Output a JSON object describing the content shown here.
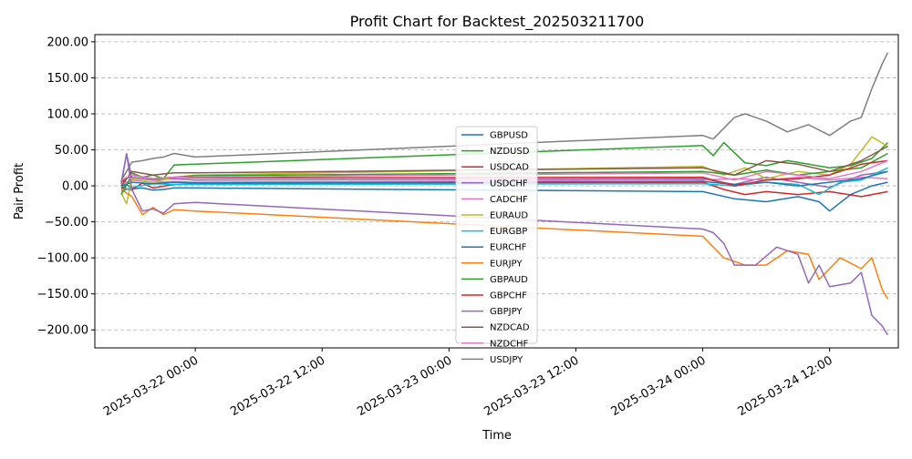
{
  "chart_data": {
    "type": "line",
    "title": "Profit Chart for Backtest_202503211700",
    "xlabel": "Time",
    "ylabel": "Pair Profit",
    "ylim": [
      -225,
      210
    ],
    "xlim": [
      "2025-03-21 14:30",
      "2025-03-24 18:30"
    ],
    "grid": "horizontal dashed",
    "legend_position": "center",
    "yticks": [
      200,
      150,
      100,
      50,
      0,
      -50,
      -100,
      -150,
      -200
    ],
    "ytick_labels": [
      "200.00",
      "150.00",
      "100.00",
      "50.00",
      "0.00",
      "−50.00",
      "−100.00",
      "−150.00",
      "−200.00"
    ],
    "xticks": [
      "2025-03-22 00:00",
      "2025-03-22 12:00",
      "2025-03-23 00:00",
      "2025-03-23 12:00",
      "2025-03-24 00:00",
      "2025-03-24 12:00"
    ],
    "series": [
      {
        "name": "GBPUSD",
        "color": "#1f77b4",
        "points": [
          [
            "2025-03-21 17:00",
            -5
          ],
          [
            "2025-03-21 17:30",
            2
          ],
          [
            "2025-03-21 18:00",
            -4
          ],
          [
            "2025-03-21 19:00",
            -3
          ],
          [
            "2025-03-21 20:00",
            -6
          ],
          [
            "2025-03-21 21:00",
            -5
          ],
          [
            "2025-03-21 22:00",
            -3
          ],
          [
            "2025-03-22 00:00",
            -3
          ],
          [
            "2025-03-24 00:00",
            -8
          ],
          [
            "2025-03-24 03:00",
            -18
          ],
          [
            "2025-03-24 06:00",
            -22
          ],
          [
            "2025-03-24 09:00",
            -15
          ],
          [
            "2025-03-24 11:00",
            -22
          ],
          [
            "2025-03-24 12:00",
            -35
          ],
          [
            "2025-03-24 14:00",
            -12
          ],
          [
            "2025-03-24 16:00",
            0
          ],
          [
            "2025-03-24 17:30",
            5
          ]
        ]
      },
      {
        "name": "NZDUSD",
        "color": "#2ca02c",
        "points": [
          [
            "2025-03-21 17:00",
            -3
          ],
          [
            "2025-03-21 17:30",
            10
          ],
          [
            "2025-03-21 18:00",
            18
          ],
          [
            "2025-03-21 19:00",
            12
          ],
          [
            "2025-03-21 20:00",
            15
          ],
          [
            "2025-03-21 21:00",
            10
          ],
          [
            "2025-03-21 22:00",
            29
          ],
          [
            "2025-03-22 00:00",
            30
          ],
          [
            "2025-03-24 00:00",
            56
          ],
          [
            "2025-03-24 01:00",
            42
          ],
          [
            "2025-03-24 02:00",
            60
          ],
          [
            "2025-03-24 04:00",
            32
          ],
          [
            "2025-03-24 06:00",
            28
          ],
          [
            "2025-03-24 08:00",
            35
          ],
          [
            "2025-03-24 10:00",
            30
          ],
          [
            "2025-03-24 12:00",
            25
          ],
          [
            "2025-03-24 14:00",
            28
          ],
          [
            "2025-03-24 16:00",
            38
          ],
          [
            "2025-03-24 17:30",
            60
          ]
        ]
      },
      {
        "name": "USDCAD",
        "color": "#d62728",
        "points": [
          [
            "2025-03-21 17:00",
            -2
          ],
          [
            "2025-03-21 18:00",
            -6
          ],
          [
            "2025-03-21 19:00",
            4
          ],
          [
            "2025-03-21 20:00",
            -3
          ],
          [
            "2025-03-21 22:00",
            2
          ],
          [
            "2025-03-22 00:00",
            3
          ],
          [
            "2025-03-24 00:00",
            5
          ],
          [
            "2025-03-24 02:00",
            -5
          ],
          [
            "2025-03-24 04:00",
            -12
          ],
          [
            "2025-03-24 06:00",
            -8
          ],
          [
            "2025-03-24 09:00",
            -12
          ],
          [
            "2025-03-24 12:00",
            -8
          ],
          [
            "2025-03-24 15:00",
            -15
          ],
          [
            "2025-03-24 17:30",
            -8
          ]
        ]
      },
      {
        "name": "USDCHF",
        "color": "#9467bd",
        "points": [
          [
            "2025-03-21 17:00",
            3
          ],
          [
            "2025-03-21 17:30",
            44
          ],
          [
            "2025-03-21 18:00",
            12
          ],
          [
            "2025-03-21 20:00",
            8
          ],
          [
            "2025-03-21 22:00",
            10
          ],
          [
            "2025-03-22 00:00",
            8
          ],
          [
            "2025-03-24 00:00",
            10
          ],
          [
            "2025-03-24 03:00",
            2
          ],
          [
            "2025-03-24 06:00",
            12
          ],
          [
            "2025-03-24 09:00",
            5
          ],
          [
            "2025-03-24 12:00",
            -2
          ],
          [
            "2025-03-24 15:00",
            15
          ],
          [
            "2025-03-24 17:30",
            20
          ]
        ]
      },
      {
        "name": "CADCHF",
        "color": "#e377c2",
        "points": [
          [
            "2025-03-21 17:00",
            2
          ],
          [
            "2025-03-21 18:00",
            8
          ],
          [
            "2025-03-21 20:00",
            5
          ],
          [
            "2025-03-21 22:00",
            6
          ],
          [
            "2025-03-22 00:00",
            5
          ],
          [
            "2025-03-24 00:00",
            8
          ],
          [
            "2025-03-24 03:00",
            10
          ],
          [
            "2025-03-24 06:00",
            8
          ],
          [
            "2025-03-24 09:00",
            12
          ],
          [
            "2025-03-24 12:00",
            8
          ],
          [
            "2025-03-24 15:00",
            12
          ],
          [
            "2025-03-24 17:30",
            10
          ]
        ]
      },
      {
        "name": "EURAUD",
        "color": "#bcbd22",
        "points": [
          [
            "2025-03-21 17:00",
            -10
          ],
          [
            "2025-03-21 17:30",
            -25
          ],
          [
            "2025-03-21 18:00",
            10
          ],
          [
            "2025-03-21 20:00",
            5
          ],
          [
            "2025-03-21 22:00",
            12
          ],
          [
            "2025-03-22 00:00",
            15
          ],
          [
            "2025-03-24 00:00",
            27
          ],
          [
            "2025-03-24 02:00",
            15
          ],
          [
            "2025-03-24 04:00",
            25
          ],
          [
            "2025-03-24 06:00",
            10
          ],
          [
            "2025-03-24 09:00",
            20
          ],
          [
            "2025-03-24 12:00",
            15
          ],
          [
            "2025-03-24 14:00",
            30
          ],
          [
            "2025-03-24 16:00",
            68
          ],
          [
            "2025-03-24 17:30",
            55
          ]
        ]
      },
      {
        "name": "EURGBP",
        "color": "#17becf",
        "points": [
          [
            "2025-03-21 17:00",
            -8
          ],
          [
            "2025-03-21 18:00",
            -2
          ],
          [
            "2025-03-21 20:00",
            3
          ],
          [
            "2025-03-21 22:00",
            2
          ],
          [
            "2025-03-22 00:00",
            2
          ],
          [
            "2025-03-24 00:00",
            3
          ],
          [
            "2025-03-24 03:00",
            0
          ],
          [
            "2025-03-24 06:00",
            5
          ],
          [
            "2025-03-24 09:00",
            2
          ],
          [
            "2025-03-24 11:00",
            -12
          ],
          [
            "2025-03-24 13:00",
            5
          ],
          [
            "2025-03-24 15:00",
            8
          ],
          [
            "2025-03-24 17:30",
            25
          ]
        ]
      },
      {
        "name": "EURCHF",
        "color": "#1f77b4",
        "points": [
          [
            "2025-03-21 17:00",
            0
          ],
          [
            "2025-03-21 18:00",
            5
          ],
          [
            "2025-03-21 20:00",
            3
          ],
          [
            "2025-03-21 22:00",
            5
          ],
          [
            "2025-03-22 00:00",
            4
          ],
          [
            "2025-03-24 00:00",
            6
          ],
          [
            "2025-03-24 03:00",
            2
          ],
          [
            "2025-03-24 06:00",
            5
          ],
          [
            "2025-03-24 09:00",
            0
          ],
          [
            "2025-03-24 12:00",
            5
          ],
          [
            "2025-03-24 15:00",
            10
          ],
          [
            "2025-03-24 17:30",
            20
          ]
        ]
      },
      {
        "name": "EURJPY",
        "color": "#ff7f0e",
        "points": [
          [
            "2025-03-21 17:00",
            -5
          ],
          [
            "2025-03-21 18:00",
            -15
          ],
          [
            "2025-03-21 19:00",
            -40
          ],
          [
            "2025-03-21 20:00",
            -30
          ],
          [
            "2025-03-21 21:00",
            -40
          ],
          [
            "2025-03-21 22:00",
            -33
          ],
          [
            "2025-03-22 00:00",
            -35
          ],
          [
            "2025-03-24 00:00",
            -70
          ],
          [
            "2025-03-24 02:00",
            -100
          ],
          [
            "2025-03-24 04:00",
            -110
          ],
          [
            "2025-03-24 06:00",
            -110
          ],
          [
            "2025-03-24 08:00",
            -90
          ],
          [
            "2025-03-24 10:00",
            -95
          ],
          [
            "2025-03-24 11:00",
            -130
          ],
          [
            "2025-03-24 13:00",
            -100
          ],
          [
            "2025-03-24 15:00",
            -115
          ],
          [
            "2025-03-24 16:00",
            -100
          ],
          [
            "2025-03-24 17:00",
            -145
          ],
          [
            "2025-03-24 17:30",
            -157
          ]
        ]
      },
      {
        "name": "GBPAUD",
        "color": "#2ca02c",
        "points": [
          [
            "2025-03-21 17:00",
            -12
          ],
          [
            "2025-03-21 18:00",
            15
          ],
          [
            "2025-03-21 20:00",
            10
          ],
          [
            "2025-03-21 22:00",
            12
          ],
          [
            "2025-03-22 00:00",
            14
          ],
          [
            "2025-03-24 00:00",
            20
          ],
          [
            "2025-03-24 03:00",
            15
          ],
          [
            "2025-03-24 06:00",
            22
          ],
          [
            "2025-03-24 09:00",
            15
          ],
          [
            "2025-03-24 12:00",
            20
          ],
          [
            "2025-03-24 15:00",
            25
          ],
          [
            "2025-03-24 17:30",
            45
          ]
        ]
      },
      {
        "name": "GBPCHF",
        "color": "#d62728",
        "points": [
          [
            "2025-03-21 17:00",
            5
          ],
          [
            "2025-03-21 18:00",
            15
          ],
          [
            "2025-03-21 20:00",
            10
          ],
          [
            "2025-03-21 22:00",
            12
          ],
          [
            "2025-03-22 00:00",
            11
          ],
          [
            "2025-03-24 00:00",
            12
          ],
          [
            "2025-03-24 03:00",
            0
          ],
          [
            "2025-03-24 06:00",
            8
          ],
          [
            "2025-03-24 09:00",
            10
          ],
          [
            "2025-03-24 12:00",
            15
          ],
          [
            "2025-03-24 15:00",
            30
          ],
          [
            "2025-03-24 17:30",
            35
          ]
        ]
      },
      {
        "name": "GBPJPY",
        "color": "#9467bd",
        "points": [
          [
            "2025-03-21 17:00",
            5
          ],
          [
            "2025-03-21 17:30",
            45
          ],
          [
            "2025-03-21 18:00",
            -5
          ],
          [
            "2025-03-21 19:00",
            -35
          ],
          [
            "2025-03-21 20:00",
            -32
          ],
          [
            "2025-03-21 21:00",
            -38
          ],
          [
            "2025-03-21 22:00",
            -25
          ],
          [
            "2025-03-22 00:00",
            -23
          ],
          [
            "2025-03-24 00:00",
            -60
          ],
          [
            "2025-03-24 01:00",
            -65
          ],
          [
            "2025-03-24 02:00",
            -80
          ],
          [
            "2025-03-24 03:00",
            -110
          ],
          [
            "2025-03-24 05:00",
            -110
          ],
          [
            "2025-03-24 07:00",
            -85
          ],
          [
            "2025-03-24 09:00",
            -95
          ],
          [
            "2025-03-24 10:00",
            -135
          ],
          [
            "2025-03-24 11:00",
            -110
          ],
          [
            "2025-03-24 12:00",
            -140
          ],
          [
            "2025-03-24 14:00",
            -135
          ],
          [
            "2025-03-24 15:00",
            -120
          ],
          [
            "2025-03-24 16:00",
            -180
          ],
          [
            "2025-03-24 17:00",
            -195
          ],
          [
            "2025-03-24 17:30",
            -207
          ]
        ]
      },
      {
        "name": "NZDCAD",
        "color": "#8c564b",
        "points": [
          [
            "2025-03-21 17:00",
            0
          ],
          [
            "2025-03-21 18:00",
            20
          ],
          [
            "2025-03-21 20:00",
            15
          ],
          [
            "2025-03-21 22:00",
            18
          ],
          [
            "2025-03-22 00:00",
            18
          ],
          [
            "2025-03-24 00:00",
            25
          ],
          [
            "2025-03-24 03:00",
            15
          ],
          [
            "2025-03-24 06:00",
            35
          ],
          [
            "2025-03-24 09:00",
            30
          ],
          [
            "2025-03-24 12:00",
            20
          ],
          [
            "2025-03-24 15:00",
            35
          ],
          [
            "2025-03-24 17:30",
            55
          ]
        ]
      },
      {
        "name": "NZDCHF",
        "color": "#e377c2",
        "points": [
          [
            "2025-03-21 17:00",
            8
          ],
          [
            "2025-03-21 18:00",
            15
          ],
          [
            "2025-03-21 20:00",
            10
          ],
          [
            "2025-03-21 22:00",
            12
          ],
          [
            "2025-03-22 00:00",
            12
          ],
          [
            "2025-03-24 00:00",
            18
          ],
          [
            "2025-03-24 03:00",
            8
          ],
          [
            "2025-03-24 06:00",
            20
          ],
          [
            "2025-03-24 09:00",
            15
          ],
          [
            "2025-03-24 12:00",
            10
          ],
          [
            "2025-03-24 15:00",
            20
          ],
          [
            "2025-03-24 17:30",
            35
          ]
        ]
      },
      {
        "name": "USDJPY",
        "color": "#7f7f7f",
        "points": [
          [
            "2025-03-21 17:00",
            8
          ],
          [
            "2025-03-21 17:30",
            20
          ],
          [
            "2025-03-21 18:00",
            33
          ],
          [
            "2025-03-21 19:00",
            35
          ],
          [
            "2025-03-21 20:00",
            38
          ],
          [
            "2025-03-21 21:00",
            40
          ],
          [
            "2025-03-21 22:00",
            45
          ],
          [
            "2025-03-22 00:00",
            40
          ],
          [
            "2025-03-24 00:00",
            70
          ],
          [
            "2025-03-24 01:00",
            65
          ],
          [
            "2025-03-24 02:00",
            80
          ],
          [
            "2025-03-24 03:00",
            95
          ],
          [
            "2025-03-24 04:00",
            100
          ],
          [
            "2025-03-24 06:00",
            90
          ],
          [
            "2025-03-24 08:00",
            75
          ],
          [
            "2025-03-24 10:00",
            85
          ],
          [
            "2025-03-24 12:00",
            70
          ],
          [
            "2025-03-24 14:00",
            90
          ],
          [
            "2025-03-24 15:00",
            95
          ],
          [
            "2025-03-24 16:00",
            135
          ],
          [
            "2025-03-24 17:00",
            170
          ],
          [
            "2025-03-24 17:30",
            185
          ]
        ]
      }
    ]
  }
}
